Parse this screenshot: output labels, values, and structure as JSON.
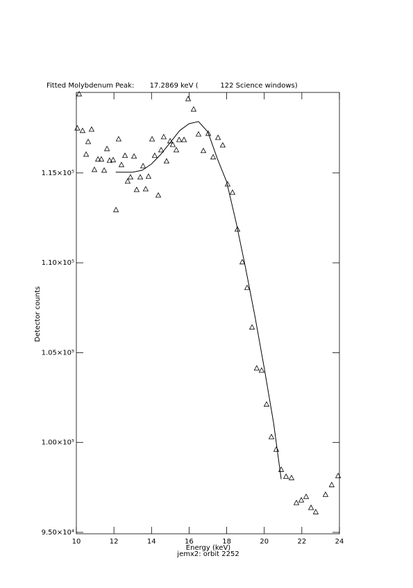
{
  "chart_data": {
    "type": "scatter",
    "title": "Fitted Molybdenum Peak:       17.2869 keV (          122 Science windows)",
    "x_label": "Energy (keV)",
    "subtitle": "jemx2: orbit 2252",
    "y_label": "Detector counts",
    "color": "#000000",
    "xlim": [
      10,
      24
    ],
    "ylim": [
      94920,
      119480
    ],
    "xticks": [
      10,
      12,
      14,
      16,
      18,
      20,
      22,
      24
    ],
    "yticks": [
      {
        "value": 95000,
        "label": "9.50×10⁴"
      },
      {
        "value": 100000,
        "label": "1.00×10⁵"
      },
      {
        "value": 105000,
        "label": "1.05×10⁵"
      },
      {
        "value": 110000,
        "label": "1.10×10⁵"
      },
      {
        "value": 115000,
        "label": "1.15×10⁵"
      }
    ],
    "points": {
      "x": [
        10.05,
        10.15,
        10.33,
        10.52,
        10.63,
        10.81,
        10.96,
        11.15,
        11.33,
        11.48,
        11.63,
        11.77,
        11.96,
        12.11,
        12.25,
        12.4,
        12.59,
        12.73,
        12.88,
        13.07,
        13.21,
        13.4,
        13.55,
        13.69,
        13.84,
        14.03,
        14.17,
        14.36,
        14.51,
        14.65,
        14.8,
        14.99,
        15.13,
        15.32,
        15.47,
        15.73,
        15.95,
        16.24,
        16.5,
        16.76,
        17.02,
        17.28,
        17.54,
        17.79,
        18.05,
        18.31,
        18.57,
        18.83,
        19.09,
        19.35,
        19.6,
        19.86,
        20.12,
        20.38,
        20.64,
        20.9,
        21.16,
        21.45,
        21.71,
        21.97,
        22.23,
        22.49,
        22.74,
        23.26,
        23.59,
        23.93
      ],
      "y": [
        117500,
        119400,
        117360,
        116040,
        116740,
        117430,
        115190,
        115770,
        115770,
        115150,
        116350,
        115700,
        115730,
        112950,
        116890,
        115460,
        115970,
        114540,
        114770,
        115930,
        114070,
        114770,
        115390,
        114110,
        114810,
        116890,
        115970,
        113760,
        116280,
        117010,
        115660,
        116780,
        116580,
        116280,
        116850,
        116850,
        119130,
        118550,
        117160,
        116240,
        117200,
        115890,
        116970,
        116550,
        114380,
        113920,
        111870,
        110050,
        108620,
        106420,
        104140,
        104020,
        102130,
        100320,
        99620,
        98500,
        98110,
        98040,
        96650,
        96800,
        96990,
        96380,
        96140,
        97110,
        97650,
        98150
      ]
    },
    "fit": {
      "x": [
        12.1,
        13.0,
        13.5,
        14.0,
        14.5,
        15.0,
        15.5,
        16.0,
        16.5,
        17.0,
        17.5,
        18.0,
        18.5,
        19.0,
        19.5,
        20.0,
        20.5,
        20.9
      ],
      "y": [
        115040,
        115040,
        115150,
        115500,
        116040,
        116700,
        117360,
        117740,
        117860,
        117280,
        115810,
        114500,
        112260,
        109750,
        107040,
        104140,
        101050,
        97960
      ]
    }
  }
}
